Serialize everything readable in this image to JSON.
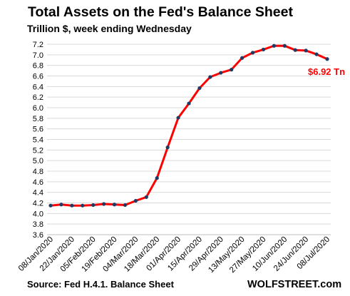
{
  "chart_data": {
    "type": "line",
    "title": "Total Assets on the Fed's Balance Sheet",
    "subtitle": "Trillion $, week ending Wednesday",
    "source": "Source: Fed H.4.1. Balance Sheet",
    "brand": "WOLFSTREET.com",
    "ylim": [
      3.6,
      7.2
    ],
    "y_ticks": [
      "3.6",
      "3.8",
      "4.0",
      "4.2",
      "4.4",
      "4.6",
      "4.8",
      "5.0",
      "5.2",
      "5.4",
      "5.6",
      "5.8",
      "6.0",
      "6.2",
      "6.4",
      "6.6",
      "6.8",
      "7.0",
      "7.2"
    ],
    "x_ticks": [
      "08/Jan/2020",
      "22/Jan/2020",
      "05/Feb/2020",
      "19/Feb/2020",
      "04/Mar/2020",
      "18/Mar/2020",
      "01/Apr/2020",
      "15/Apr/2020",
      "29/Apr/2020",
      "13/May/2020",
      "27/May/2020",
      "10/Jun/2020",
      "24/Jun/2020",
      "08/Jul/2020"
    ],
    "grid": true,
    "legend": "none",
    "series": [
      {
        "color": "#ff0000",
        "marker_color": "#1f3b63",
        "values": [
          4.15,
          4.17,
          4.15,
          4.15,
          4.16,
          4.18,
          4.17,
          4.16,
          4.24,
          4.31,
          4.67,
          5.25,
          5.81,
          6.08,
          6.37,
          6.58,
          6.66,
          6.72,
          6.94,
          7.04,
          7.1,
          7.17,
          7.17,
          7.09,
          7.08,
          7.01,
          6.92
        ]
      }
    ],
    "annotation": "$6.92 Tn"
  }
}
